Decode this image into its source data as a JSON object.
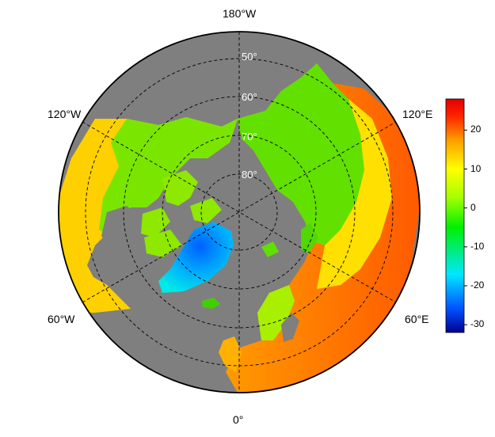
{
  "map": {
    "projection": "north-polar-stereographic",
    "ocean_color": "#7f7f7f",
    "graticule_color": "#000000",
    "latitude_labels": [
      "50°",
      "60°",
      "70°",
      "80°"
    ],
    "longitude_labels": {
      "top": "180°W",
      "upper_left": "120°W",
      "upper_right": "120°E",
      "lower_left": "60°W",
      "lower_right": "60°E",
      "bottom": "0°"
    }
  },
  "colorbar": {
    "min": -32,
    "max": 28,
    "ticks": [
      "20",
      "10",
      "0",
      "-10",
      "-20",
      "-30"
    ],
    "tick_values": [
      20,
      10,
      0,
      -10,
      -20,
      -30
    ],
    "colors": [
      "#00008f",
      "#0050ff",
      "#00e8ff",
      "#00f000",
      "#a8ff00",
      "#ffff00",
      "#ffa000",
      "#ff2000",
      "#e00000"
    ]
  }
}
